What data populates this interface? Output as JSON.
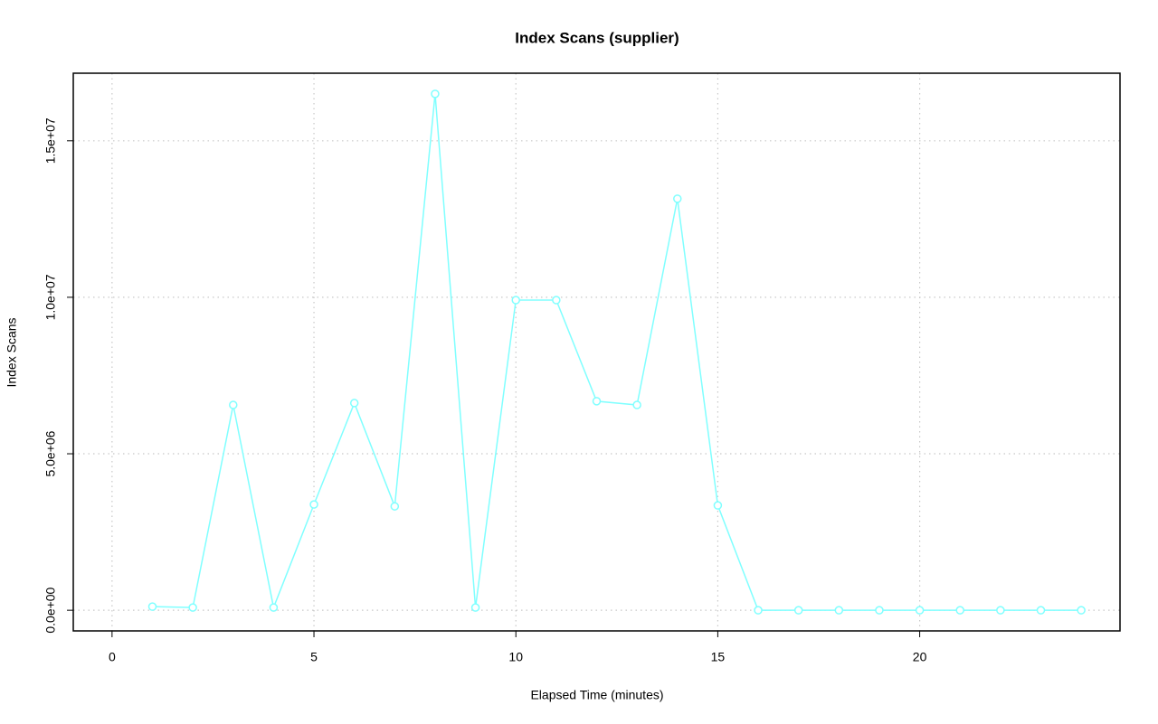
{
  "chart_data": {
    "type": "line",
    "title": "Index Scans (supplier)",
    "x_label": "Elapsed Time (minutes)",
    "y_label": "Index Scans",
    "x": [
      1,
      2,
      3,
      4,
      5,
      6,
      7,
      8,
      9,
      10,
      11,
      12,
      13,
      14,
      15,
      16,
      17,
      18,
      19,
      20,
      21,
      22,
      23,
      24
    ],
    "series": [
      {
        "name": "Index Scans",
        "color": "#80ffff",
        "values": [
          115000,
          87000,
          6560000,
          87000,
          3380000,
          6620000,
          3320000,
          16500000,
          87000,
          9910000,
          9910000,
          6680000,
          6560000,
          13150000,
          3350000,
          0,
          0,
          0,
          0,
          0,
          0,
          0,
          0,
          0
        ]
      }
    ],
    "xlim": [
      -0.96,
      24.96
    ],
    "xticks": [
      0,
      5,
      10,
      15,
      20
    ],
    "ylim": [
      -660000,
      17160000
    ],
    "yticks": [
      {
        "value": 0,
        "label": "0.0e+00"
      },
      {
        "value": 5000000,
        "label": "5.0e+06"
      },
      {
        "value": 10000000,
        "label": "1.0e+07"
      },
      {
        "value": 15000000,
        "label": "1.5e+07"
      }
    ],
    "grid": true,
    "marker": "circle"
  }
}
